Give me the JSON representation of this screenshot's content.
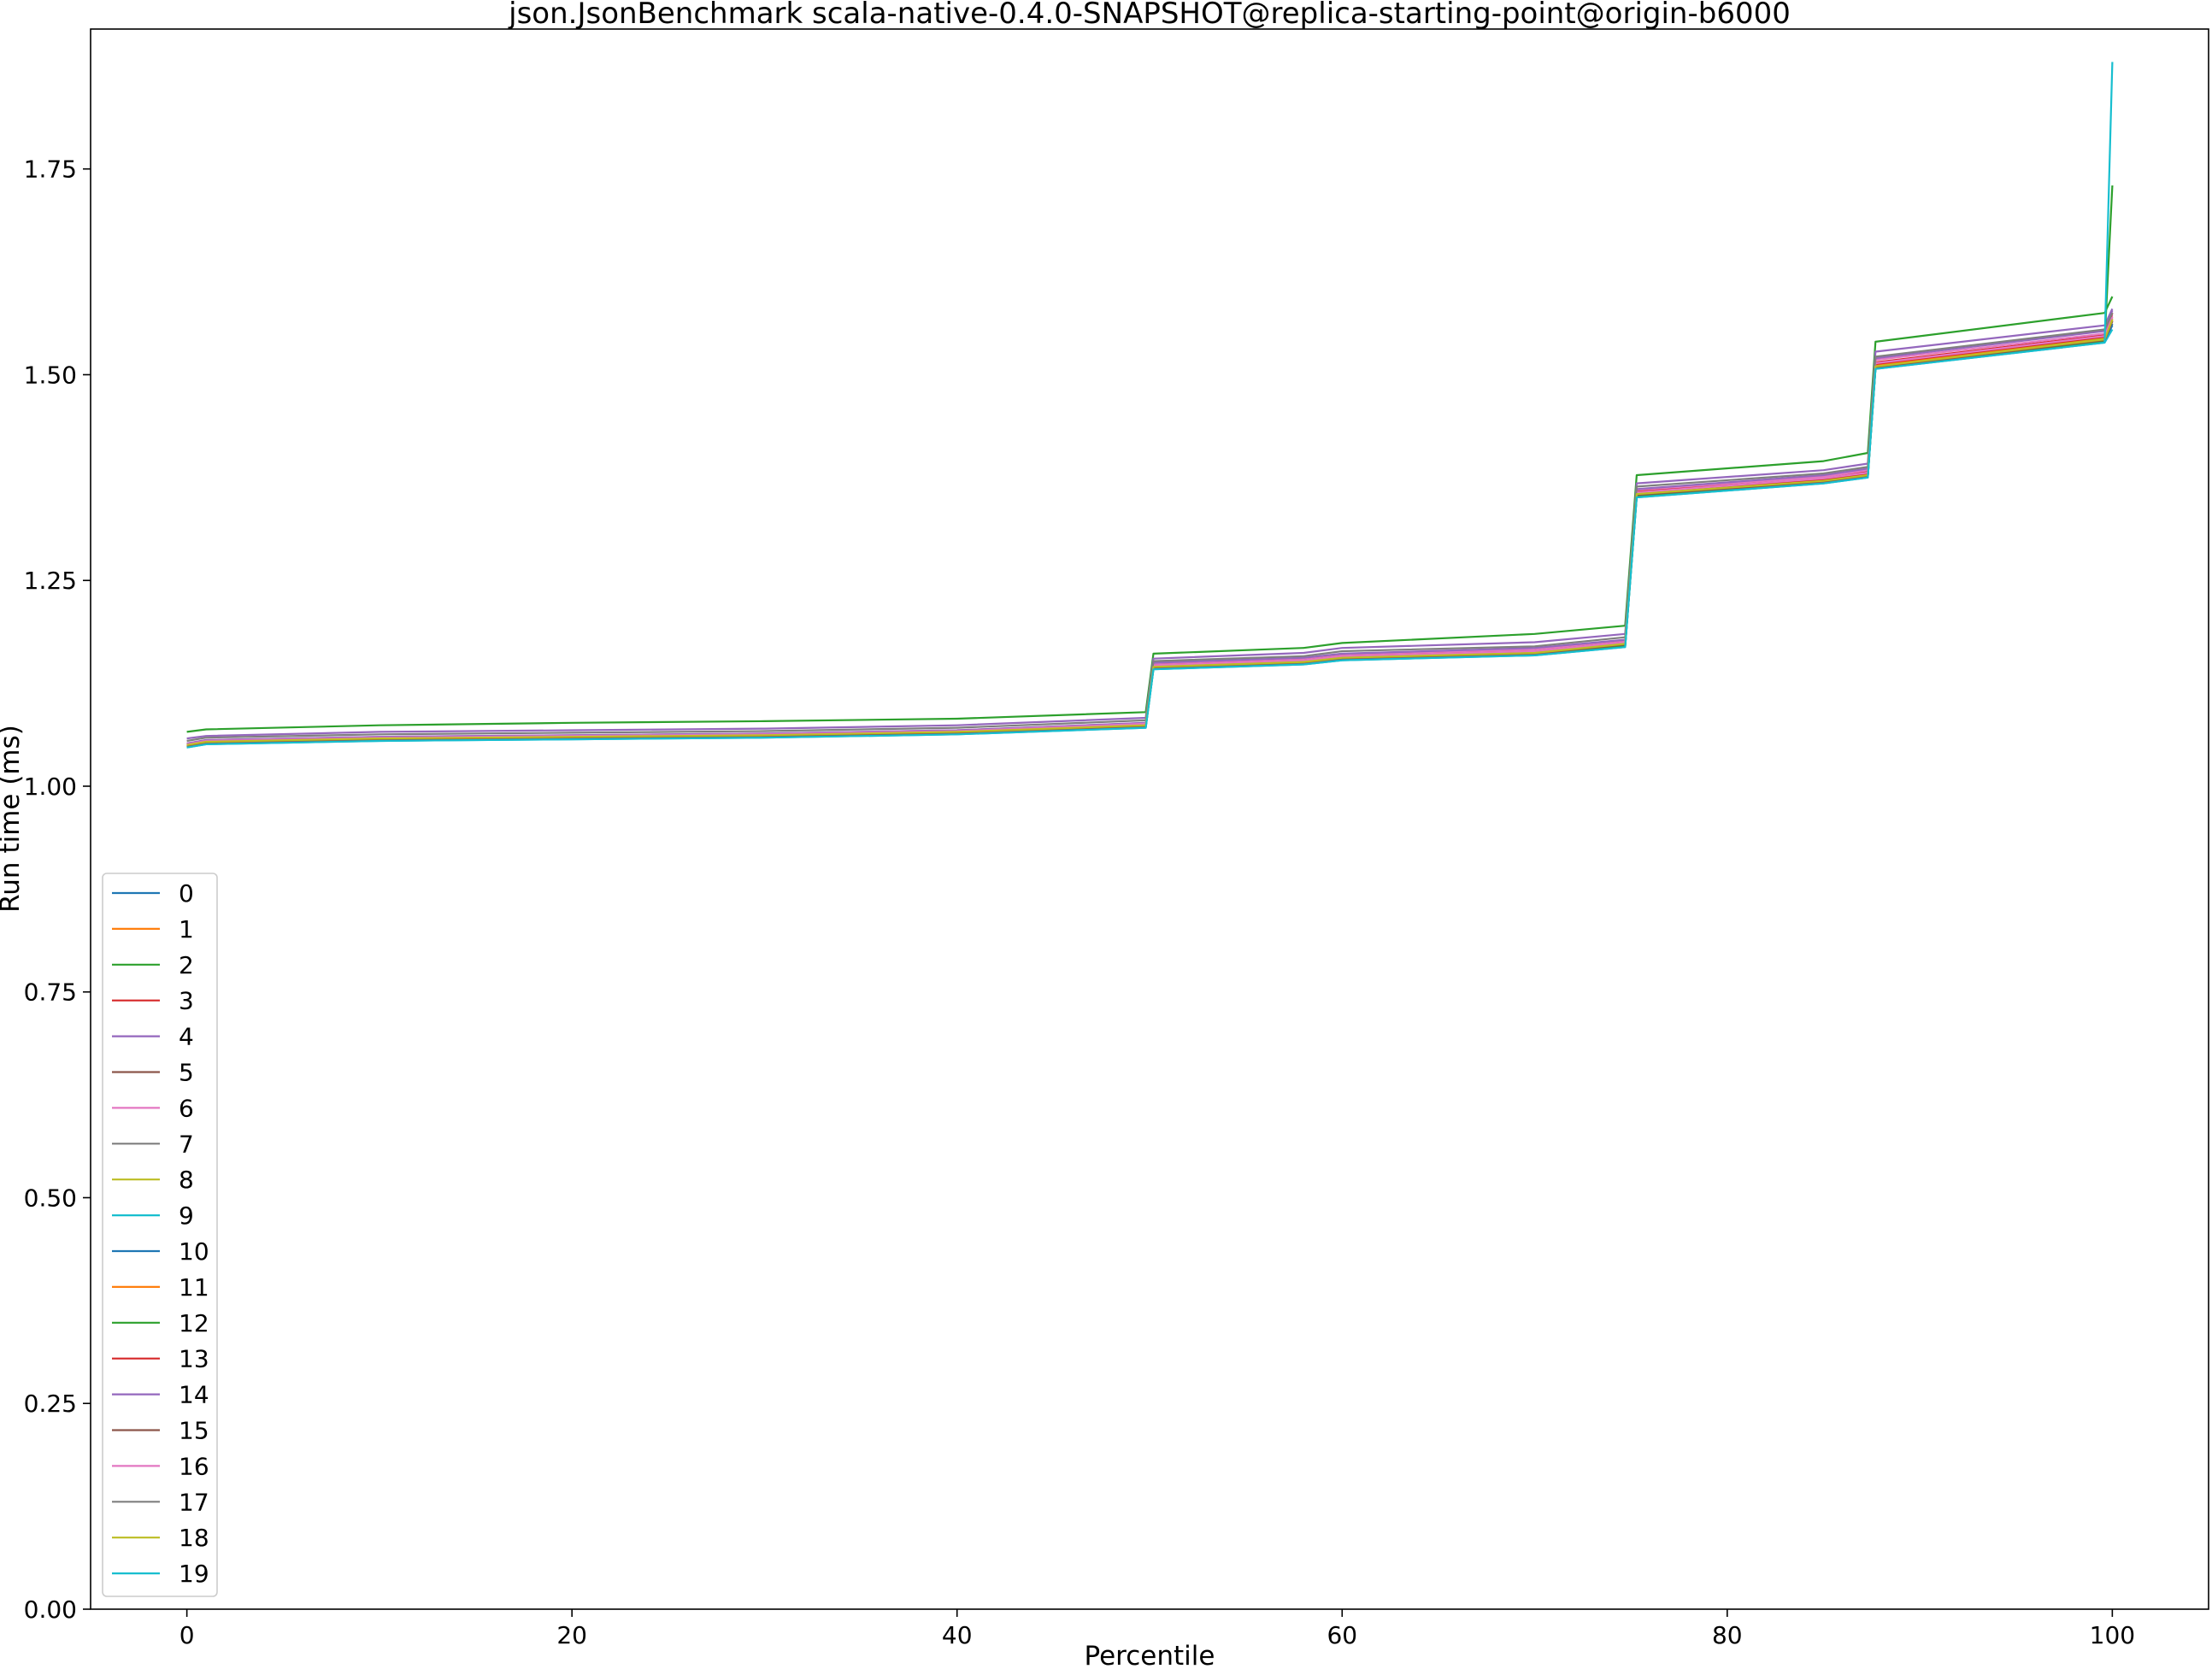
{
  "chart_data": {
    "type": "line",
    "title": "json.JsonBenchmark scala-native-0.4.0-SNAPSHOT@replica-starting-point@origin-b6000",
    "xlabel": "Percentile",
    "ylabel": "Run time (ms)",
    "xlim": [
      -5,
      105
    ],
    "ylim": [
      0,
      1.92
    ],
    "xticks": [
      0,
      20,
      40,
      60,
      80,
      100
    ],
    "xtick_labels": [
      "0",
      "20",
      "40",
      "60",
      "80",
      "100"
    ],
    "yticks": [
      0,
      0.25,
      0.5,
      0.75,
      1.0,
      1.25,
      1.5,
      1.75
    ],
    "ytick_labels": [
      "0.00",
      "0.25",
      "0.50",
      "0.75",
      "1.00",
      "1.25",
      "1.50",
      "1.75"
    ],
    "grid": false,
    "legend_position": "lower-left",
    "x": [
      0,
      1,
      10,
      20,
      30,
      40,
      49.8,
      50.2,
      58,
      60,
      70,
      74.7,
      75.3,
      85,
      87.3,
      87.7,
      99.6,
      100
    ],
    "series": [
      {
        "name": "0",
        "color": "#1f77b4",
        "values": [
          1.048,
          1.052,
          1.056,
          1.058,
          1.06,
          1.064,
          1.072,
          1.143,
          1.149,
          1.154,
          1.16,
          1.17,
          1.352,
          1.369,
          1.376,
          1.508,
          1.54,
          1.56
        ]
      },
      {
        "name": "1",
        "color": "#ff7f0e",
        "values": [
          1.05,
          1.054,
          1.058,
          1.06,
          1.062,
          1.066,
          1.075,
          1.146,
          1.152,
          1.157,
          1.163,
          1.174,
          1.356,
          1.372,
          1.38,
          1.512,
          1.545,
          1.57
        ]
      },
      {
        "name": "2",
        "color": "#2ca02c",
        "values": [
          1.066,
          1.069,
          1.074,
          1.077,
          1.079,
          1.082,
          1.09,
          1.161,
          1.168,
          1.174,
          1.185,
          1.195,
          1.378,
          1.395,
          1.405,
          1.54,
          1.575,
          1.595
        ]
      },
      {
        "name": "3",
        "color": "#d62728",
        "values": [
          1.051,
          1.055,
          1.059,
          1.061,
          1.063,
          1.067,
          1.076,
          1.148,
          1.154,
          1.159,
          1.165,
          1.176,
          1.358,
          1.374,
          1.382,
          1.515,
          1.548,
          1.575
        ]
      },
      {
        "name": "4",
        "color": "#9467bd",
        "values": [
          1.058,
          1.061,
          1.066,
          1.068,
          1.07,
          1.074,
          1.083,
          1.155,
          1.162,
          1.168,
          1.175,
          1.185,
          1.368,
          1.384,
          1.392,
          1.528,
          1.56,
          1.58
        ]
      },
      {
        "name": "5",
        "color": "#8c564b",
        "values": [
          1.05,
          1.054,
          1.058,
          1.06,
          1.062,
          1.066,
          1.074,
          1.145,
          1.151,
          1.156,
          1.162,
          1.173,
          1.355,
          1.371,
          1.378,
          1.51,
          1.543,
          1.565
        ]
      },
      {
        "name": "6",
        "color": "#e377c2",
        "values": [
          1.052,
          1.056,
          1.06,
          1.062,
          1.064,
          1.068,
          1.077,
          1.149,
          1.155,
          1.16,
          1.166,
          1.177,
          1.36,
          1.376,
          1.384,
          1.518,
          1.55,
          1.572
        ]
      },
      {
        "name": "7",
        "color": "#7f7f7f",
        "values": [
          1.049,
          1.053,
          1.057,
          1.059,
          1.061,
          1.065,
          1.073,
          1.144,
          1.15,
          1.155,
          1.161,
          1.171,
          1.353,
          1.37,
          1.377,
          1.509,
          1.542,
          1.562
        ]
      },
      {
        "name": "8",
        "color": "#bcbd22",
        "values": [
          1.051,
          1.055,
          1.059,
          1.061,
          1.063,
          1.067,
          1.075,
          1.146,
          1.152,
          1.157,
          1.163,
          1.174,
          1.356,
          1.372,
          1.379,
          1.511,
          1.544,
          1.568
        ]
      },
      {
        "name": "9",
        "color": "#17becf",
        "values": [
          1.047,
          1.051,
          1.055,
          1.057,
          1.059,
          1.063,
          1.071,
          1.142,
          1.148,
          1.153,
          1.159,
          1.169,
          1.351,
          1.368,
          1.375,
          1.507,
          1.539,
          1.555
        ]
      },
      {
        "name": "10",
        "color": "#1f77b4",
        "values": [
          1.049,
          1.053,
          1.057,
          1.059,
          1.061,
          1.065,
          1.073,
          1.144,
          1.15,
          1.155,
          1.161,
          1.172,
          1.354,
          1.37,
          1.377,
          1.51,
          1.542,
          1.562
        ]
      },
      {
        "name": "11",
        "color": "#ff7f0e",
        "values": [
          1.05,
          1.054,
          1.058,
          1.06,
          1.062,
          1.066,
          1.074,
          1.145,
          1.151,
          1.156,
          1.162,
          1.173,
          1.355,
          1.371,
          1.378,
          1.511,
          1.543,
          1.566
        ]
      },
      {
        "name": "12",
        "color": "#2ca02c",
        "values": [
          1.048,
          1.052,
          1.056,
          1.058,
          1.06,
          1.064,
          1.072,
          1.143,
          1.149,
          1.154,
          1.16,
          1.17,
          1.352,
          1.369,
          1.376,
          1.508,
          1.541,
          1.73
        ]
      },
      {
        "name": "13",
        "color": "#d62728",
        "values": [
          1.05,
          1.054,
          1.058,
          1.06,
          1.062,
          1.066,
          1.075,
          1.147,
          1.153,
          1.158,
          1.164,
          1.175,
          1.357,
          1.373,
          1.38,
          1.513,
          1.546,
          1.575
        ]
      },
      {
        "name": "14",
        "color": "#9467bd",
        "values": [
          1.052,
          1.056,
          1.06,
          1.062,
          1.064,
          1.068,
          1.077,
          1.15,
          1.156,
          1.161,
          1.168,
          1.178,
          1.361,
          1.378,
          1.386,
          1.52,
          1.553,
          1.578
        ]
      },
      {
        "name": "15",
        "color": "#8c564b",
        "values": [
          1.049,
          1.053,
          1.057,
          1.059,
          1.061,
          1.065,
          1.073,
          1.144,
          1.15,
          1.155,
          1.161,
          1.172,
          1.354,
          1.37,
          1.377,
          1.509,
          1.542,
          1.565
        ]
      },
      {
        "name": "16",
        "color": "#e377c2",
        "values": [
          1.051,
          1.055,
          1.059,
          1.061,
          1.063,
          1.067,
          1.076,
          1.147,
          1.153,
          1.158,
          1.164,
          1.175,
          1.357,
          1.374,
          1.381,
          1.514,
          1.547,
          1.57
        ]
      },
      {
        "name": "17",
        "color": "#7f7f7f",
        "values": [
          1.055,
          1.059,
          1.063,
          1.065,
          1.067,
          1.071,
          1.08,
          1.152,
          1.158,
          1.164,
          1.17,
          1.181,
          1.364,
          1.38,
          1.388,
          1.522,
          1.555,
          1.575
        ]
      },
      {
        "name": "18",
        "color": "#bcbd22",
        "values": [
          1.05,
          1.054,
          1.058,
          1.06,
          1.062,
          1.066,
          1.074,
          1.145,
          1.151,
          1.156,
          1.162,
          1.173,
          1.355,
          1.371,
          1.378,
          1.51,
          1.543,
          1.567
        ]
      },
      {
        "name": "19",
        "color": "#17becf",
        "values": [
          1.047,
          1.051,
          1.055,
          1.057,
          1.059,
          1.063,
          1.071,
          1.142,
          1.148,
          1.153,
          1.159,
          1.169,
          1.351,
          1.368,
          1.375,
          1.507,
          1.539,
          1.88
        ]
      }
    ]
  }
}
